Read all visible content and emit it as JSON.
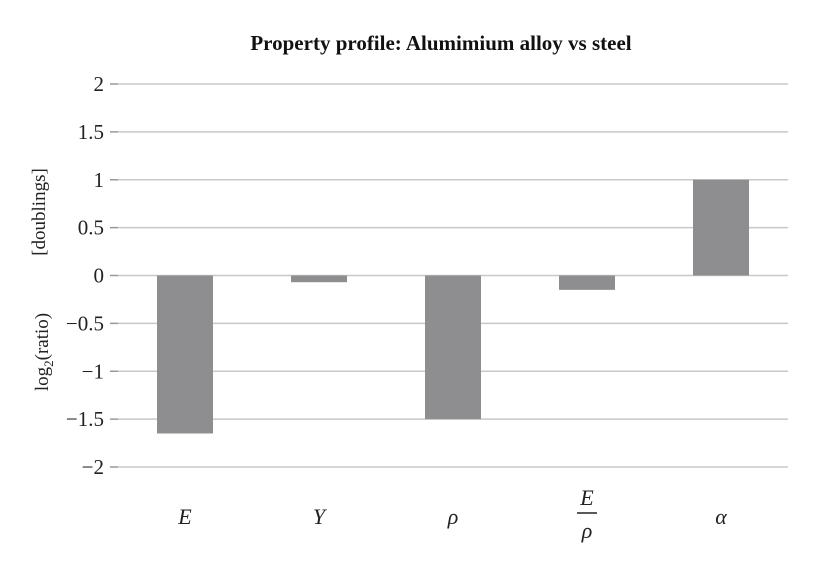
{
  "chart_data": {
    "type": "bar",
    "title": "Property profile: Alumimium alloy vs steel",
    "ylabel": {
      "line1": "[doublings]",
      "line2_prefix": "log",
      "line2_sub": "2",
      "line2_suffix": "(ratio)"
    },
    "xlabel": "",
    "categories": [
      {
        "label": "E"
      },
      {
        "label": "Y"
      },
      {
        "label": "ρ"
      },
      {
        "label": "E/ρ",
        "numerator": "E",
        "denominator": "ρ"
      },
      {
        "label": "α"
      }
    ],
    "values": [
      -1.65,
      -0.07,
      -1.5,
      -0.15,
      1.0
    ],
    "ylim": [
      -2,
      2
    ],
    "yticks": [
      2,
      1.5,
      1,
      0.5,
      0,
      -0.5,
      -1,
      -1.5,
      -2
    ],
    "ytick_labels": [
      "2",
      "1.5",
      "1",
      "0.5",
      "0",
      "−0.5",
      "−1",
      "−1.5",
      "−2"
    ],
    "grid": true,
    "legend": "none",
    "bar_color": "#8e8e91"
  }
}
